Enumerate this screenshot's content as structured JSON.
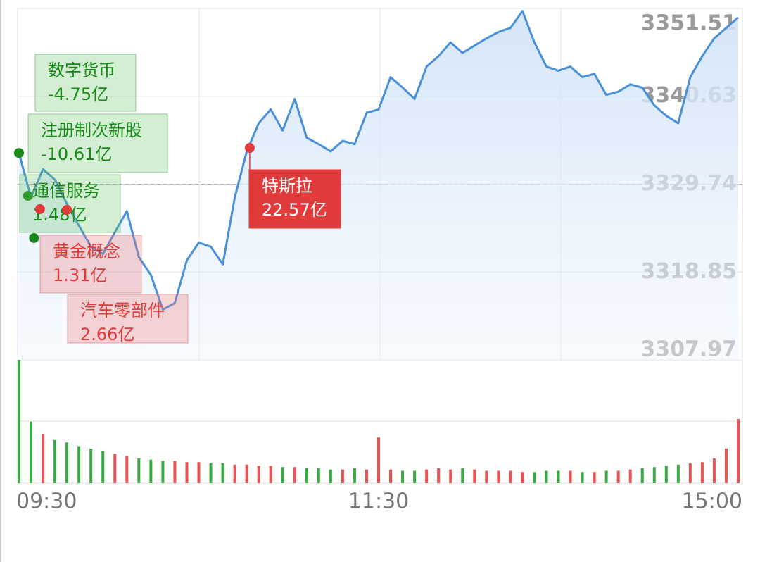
{
  "chart_data": {
    "type": "line",
    "x": [
      0,
      4,
      8,
      12,
      16,
      20,
      24,
      28,
      32,
      36,
      40,
      44,
      48,
      52,
      56,
      60,
      64,
      68,
      72,
      76,
      80,
      84,
      88,
      92,
      96,
      100,
      104,
      108,
      112,
      116,
      120,
      124,
      128,
      132,
      136,
      140,
      144,
      148,
      152,
      156,
      160,
      164,
      168,
      172,
      176,
      180,
      184,
      188,
      192,
      196,
      200,
      204,
      208,
      212,
      216,
      220,
      224,
      228,
      232,
      236,
      240
    ],
    "xlim": [
      0,
      240
    ],
    "xticks": [
      {
        "value": 0,
        "label": "09:30"
      },
      {
        "value": 120,
        "label": "11:30"
      },
      {
        "value": 240,
        "label": "15:00"
      }
    ],
    "series": [
      {
        "name": "price",
        "color": "#4a90d9",
        "values": [
          3333.6,
          3328.1,
          3331.6,
          3330.3,
          3327.3,
          3324.6,
          3322.0,
          3321.1,
          3323.8,
          3326.4,
          3320.7,
          3318.5,
          3314.2,
          3315.0,
          3320.3,
          3322.5,
          3322.0,
          3319.8,
          3328.1,
          3333.8,
          3337.3,
          3339.0,
          3336.4,
          3340.3,
          3335.5,
          3334.7,
          3333.8,
          3335.1,
          3334.7,
          3338.6,
          3339.0,
          3343.0,
          3341.7,
          3340.3,
          3344.3,
          3345.6,
          3347.3,
          3346.0,
          3346.9,
          3347.8,
          3348.6,
          3349.1,
          3351.2,
          3347.3,
          3344.3,
          3343.8,
          3344.3,
          3343.0,
          3343.4,
          3340.8,
          3341.2,
          3342.1,
          3341.7,
          3339.5,
          3338.2,
          3337.3,
          3343.0,
          3345.6,
          3347.8,
          3349.1,
          3350.4
        ]
      }
    ],
    "ylim": [
      3307.97,
      3351.51
    ],
    "yticks": [
      3351.51,
      3340.63,
      3329.74,
      3318.85,
      3307.97
    ],
    "prev_close": 3329.74,
    "volume": {
      "values": [
        100,
        50,
        40,
        35,
        33,
        30,
        28,
        26,
        24,
        22,
        20,
        19,
        18,
        18,
        17,
        17,
        16,
        16,
        15,
        15,
        14,
        14,
        13,
        13,
        12,
        12,
        11,
        11,
        12,
        11,
        37,
        11,
        10,
        10,
        11,
        12,
        11,
        12,
        11,
        10,
        10,
        10,
        9,
        9,
        10,
        10,
        10,
        9,
        9,
        10,
        10,
        11,
        12,
        13,
        14,
        15,
        16,
        17,
        20,
        28,
        52
      ],
      "vlim": [
        0,
        100
      ],
      "up_color": "#e85454",
      "down_color": "#3aa845"
    },
    "annotations": [
      {
        "label": "数字货币",
        "amount": "-4.75亿",
        "x": 0,
        "y": 3333.6,
        "color": "#1a8a1a"
      },
      {
        "label": "注册制次新股",
        "amount": "-10.61亿",
        "x": 3,
        "y": 3328.3,
        "color": "#1a8a1a"
      },
      {
        "label": "通信服务",
        "amount": "1.48亿",
        "x": 5,
        "y": 3323.07,
        "color": "#1a8a1a"
      },
      {
        "label": "黄金概念",
        "amount": "1.31亿",
        "x": 7,
        "y": 3326.64,
        "color": "#e03a3a"
      },
      {
        "label": "汽车零部件",
        "amount": "2.66亿",
        "x": 16,
        "y": 3326.55,
        "color": "#e03a3a"
      },
      {
        "label": "特斯拉",
        "amount": "22.57亿",
        "x": 77,
        "y": 3334.23,
        "color": "#e03a3a"
      }
    ]
  }
}
